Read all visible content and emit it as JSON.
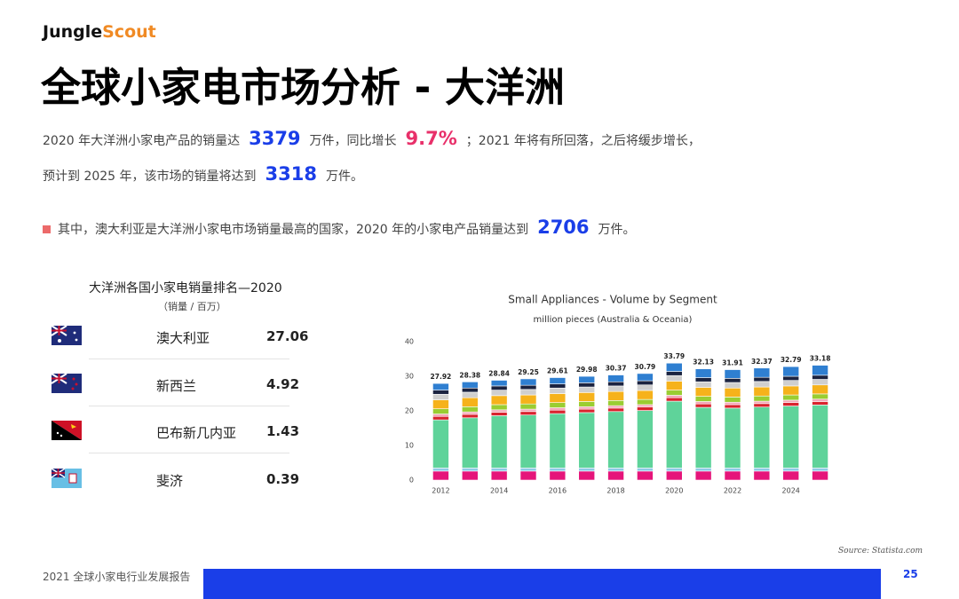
{
  "header": {
    "logo_left": "Jungle",
    "logo_right": "Scout",
    "title": "全球小家电市场分析 - 大洋洲"
  },
  "summary": {
    "line1": [
      "2020 年大洋洲小家电产品的销量达",
      "3379",
      "万件，同比增长",
      "9.7%",
      "；2021 年将有所回落，之后将缓步增长，"
    ],
    "line2": [
      "预计到 2025 年，该市场的销量将达到",
      "3318",
      "万件。"
    ],
    "bullet": [
      "其中，澳大利亚是大洋洲小家电市场销量最高的国家，2020 年的小家电产品销量达到",
      "2706",
      "万件。"
    ]
  },
  "table": {
    "title": "大洋洲各国小家电销量排名—2020",
    "subtitle": "（销量 / 百万）",
    "rows": [
      [
        "澳大利亚",
        "27.06"
      ],
      [
        "新西兰",
        "4.92"
      ],
      [
        "巴布新几内亚",
        "1.43"
      ],
      [
        "斐济",
        "0.39"
      ]
    ]
  },
  "chart_data": {
    "type": "stacked_bar",
    "title": "Small Appliances - Volume by Segment",
    "subtitle": "million pieces (Australia & Oceania)",
    "categories": [
      "2012",
      null,
      "2014",
      null,
      "2016",
      null,
      "2018",
      null,
      "2020",
      null,
      "2022",
      null,
      "2024",
      null
    ],
    "ylim": [
      0,
      40
    ],
    "yticks": [
      0,
      10,
      20,
      30,
      40
    ],
    "grid": false,
    "totals": [
      27.92,
      28.38,
      28.84,
      29.25,
      29.61,
      29.98,
      30.37,
      30.79,
      33.79,
      32.13,
      31.91,
      32.37,
      32.79,
      33.18
    ],
    "series": [
      {
        "color": "#e5157a",
        "values": [
          2.6,
          2.6,
          2.6,
          2.6,
          2.6,
          2.6,
          2.6,
          2.6,
          2.6,
          2.6,
          2.6,
          2.6,
          2.6,
          2.6
        ]
      },
      {
        "color": "#8ecae6",
        "values": [
          0.9,
          0.9,
          0.9,
          0.9,
          0.9,
          0.9,
          0.9,
          0.9,
          0.9,
          0.9,
          0.9,
          0.9,
          0.9,
          0.9
        ]
      },
      {
        "color": "#5fd39a",
        "values": [
          13.9,
          14.5,
          15.1,
          15.3,
          15.7,
          16.0,
          16.3,
          16.6,
          19.3,
          17.5,
          17.3,
          17.6,
          17.9,
          18.2
        ]
      },
      {
        "color": "#d9232e",
        "values": [
          1.0,
          1.0,
          1.0,
          1.0,
          1.0,
          1.0,
          1.0,
          1.0,
          1.0,
          1.0,
          1.0,
          1.0,
          1.0,
          1.0
        ]
      },
      {
        "color": "#f4a6b8",
        "values": [
          0.7,
          0.7,
          0.7,
          0.7,
          0.7,
          0.7,
          0.7,
          0.7,
          0.7,
          0.7,
          0.7,
          0.7,
          0.7,
          0.7
        ]
      },
      {
        "color": "#9acd32",
        "values": [
          1.5,
          1.5,
          1.5,
          1.5,
          1.5,
          1.5,
          1.5,
          1.5,
          1.5,
          1.5,
          1.5,
          1.5,
          1.5,
          1.5
        ]
      },
      {
        "color": "#f6b21b",
        "values": [
          2.6,
          2.6,
          2.6,
          2.6,
          2.6,
          2.6,
          2.6,
          2.6,
          2.6,
          2.6,
          2.6,
          2.6,
          2.6,
          2.6
        ]
      },
      {
        "color": "#cfcfcf",
        "values": [
          1.6,
          1.6,
          1.6,
          1.6,
          1.6,
          1.6,
          1.6,
          1.6,
          1.6,
          1.6,
          1.6,
          1.6,
          1.6,
          1.6
        ]
      },
      {
        "color": "#1b2340",
        "values": [
          1.2,
          1.2,
          1.2,
          1.2,
          1.2,
          1.2,
          1.2,
          1.2,
          1.2,
          1.2,
          1.2,
          1.2,
          1.2,
          1.2
        ]
      },
      {
        "color": "#2f7fd1",
        "values": [
          1.92,
          1.78,
          1.64,
          1.85,
          1.81,
          1.88,
          1.97,
          2.09,
          2.39,
          2.53,
          2.51,
          2.67,
          2.79,
          2.88
        ]
      }
    ]
  },
  "footer": {
    "source": "Source: Statista.com",
    "report": "2021 全球小家电行业发展报告",
    "page": "25"
  }
}
